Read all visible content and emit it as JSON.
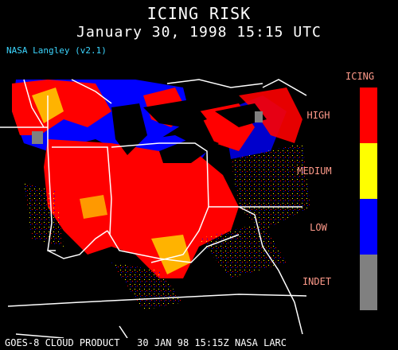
{
  "header": {
    "title": "ICING RISK",
    "subtitle": "January 30, 1998 15:15 UTC",
    "version": "NASA Langley (v2.1)"
  },
  "legend": {
    "title": "ICING",
    "items": [
      {
        "label": "HIGH",
        "color": "#ff0000"
      },
      {
        "label": "MEDIUM",
        "color": "#ffff00"
      },
      {
        "label": "LOW",
        "color": "#0000ff"
      },
      {
        "label": "INDET",
        "color": "#808080"
      }
    ]
  },
  "footer": "GOES-8 CLOUD PRODUCT   30 JAN 98 15:15Z NASA LARC"
}
